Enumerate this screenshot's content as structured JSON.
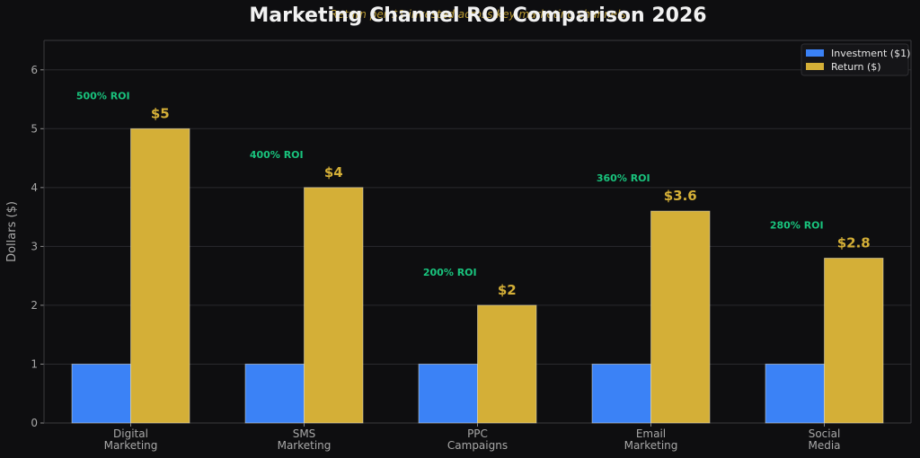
{
  "chart_data": {
    "type": "bar",
    "title": "Marketing Channel ROI Comparison 2026",
    "subtitle": "Return per $1 invested across key marketing channels",
    "ylabel": "Dollars ($)",
    "xlabel": "",
    "ylim": [
      0,
      6.5
    ],
    "yticks": [
      0,
      1,
      2,
      3,
      4,
      5,
      6
    ],
    "categories": [
      "Digital\nMarketing",
      "SMS\nMarketing",
      "PPC\nCampaigns",
      "Email\nMarketing",
      "Social\nMedia"
    ],
    "series": [
      {
        "name": "Investment ($1)",
        "values": [
          1,
          1,
          1,
          1,
          1
        ],
        "color": "#3b82f6"
      },
      {
        "name": "Return ($)",
        "values": [
          5,
          4,
          2,
          3.6,
          2.8
        ],
        "color": "#d4af37"
      }
    ],
    "value_labels": [
      "$5",
      "$4",
      "$2",
      "$3.6",
      "$2.8"
    ],
    "roi_labels": [
      "500% ROI",
      "400% ROI",
      "200% ROI",
      "360% ROI",
      "280% ROI"
    ],
    "legend_position": "top-right",
    "grid": true
  }
}
